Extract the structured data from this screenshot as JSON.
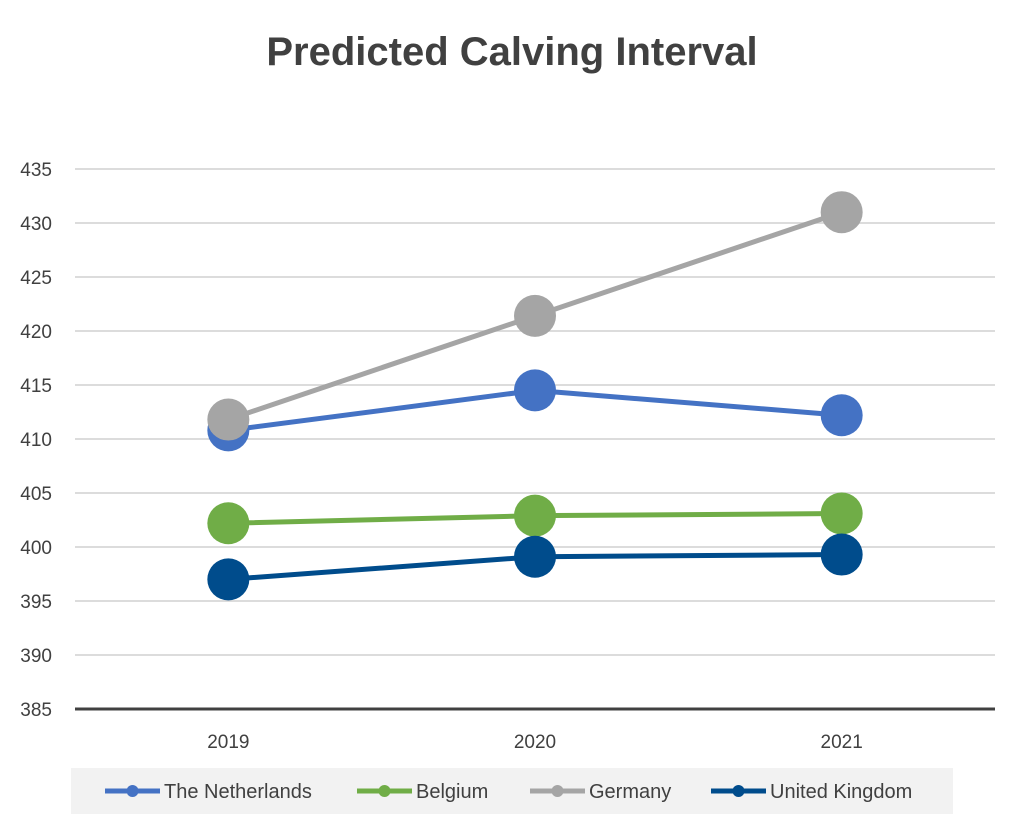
{
  "chart_data": {
    "type": "line",
    "title": "Predicted Calving Interval",
    "xlabel": "",
    "ylabel": "",
    "categories": [
      "2019",
      "2020",
      "2021"
    ],
    "ylim": [
      385,
      435
    ],
    "yticks": [
      385,
      390,
      395,
      400,
      405,
      410,
      415,
      420,
      425,
      430,
      435
    ],
    "grid": true,
    "legend_position": "bottom",
    "series": [
      {
        "name": "The Netherlands",
        "color": "#4472C4",
        "values": [
          410.8,
          414.5,
          412.2
        ]
      },
      {
        "name": "Belgium",
        "color": "#70AD47",
        "values": [
          402.2,
          402.9,
          403.1
        ]
      },
      {
        "name": "Germany",
        "color": "#A5A5A5",
        "values": [
          411.8,
          421.4,
          431.0
        ]
      },
      {
        "name": "United Kingdom",
        "color": "#004C8C",
        "values": [
          397.0,
          399.1,
          399.3
        ]
      }
    ]
  }
}
